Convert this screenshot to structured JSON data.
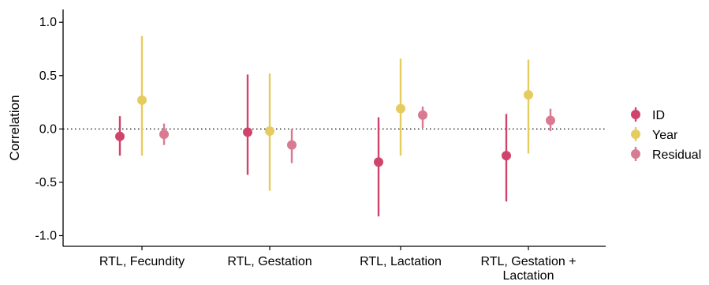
{
  "chart_data": {
    "type": "scatter",
    "subtype": "point-range",
    "title": "",
    "xlabel": "",
    "ylabel": "Correlation",
    "ylim": [
      -1.1,
      1.12
    ],
    "yticks": [
      1.0,
      0.5,
      0.0,
      -0.5,
      -1.0
    ],
    "ytick_labels": [
      "1.0",
      "0.5",
      "0.0",
      "-0.5",
      "-1.0"
    ],
    "reference_line": {
      "y": 0,
      "style": "dotted"
    },
    "grid": false,
    "legend_position": "right",
    "categories": [
      [
        "RTL, Fecundity"
      ],
      [
        "RTL, Gestation"
      ],
      [
        "RTL, Lactation"
      ],
      [
        "RTL, Gestation +",
        "Lactation"
      ]
    ],
    "series": [
      {
        "name": "ID",
        "color": "#d0446b",
        "values": [
          -0.07,
          -0.03,
          -0.31,
          -0.25
        ],
        "lower": [
          -0.25,
          -0.43,
          -0.82,
          -0.68
        ],
        "upper": [
          0.12,
          0.51,
          0.11,
          0.14
        ]
      },
      {
        "name": "Year",
        "color": "#e6cc5f",
        "values": [
          0.27,
          -0.02,
          0.19,
          0.32
        ],
        "lower": [
          -0.25,
          -0.58,
          -0.25,
          -0.23
        ],
        "upper": [
          0.87,
          0.52,
          0.66,
          0.65
        ]
      },
      {
        "name": "Residual",
        "color": "#d87a92",
        "values": [
          -0.05,
          -0.15,
          0.13,
          0.08
        ],
        "lower": [
          -0.15,
          -0.32,
          0.01,
          -0.02
        ],
        "upper": [
          0.05,
          0.0,
          0.21,
          0.19
        ]
      }
    ]
  }
}
